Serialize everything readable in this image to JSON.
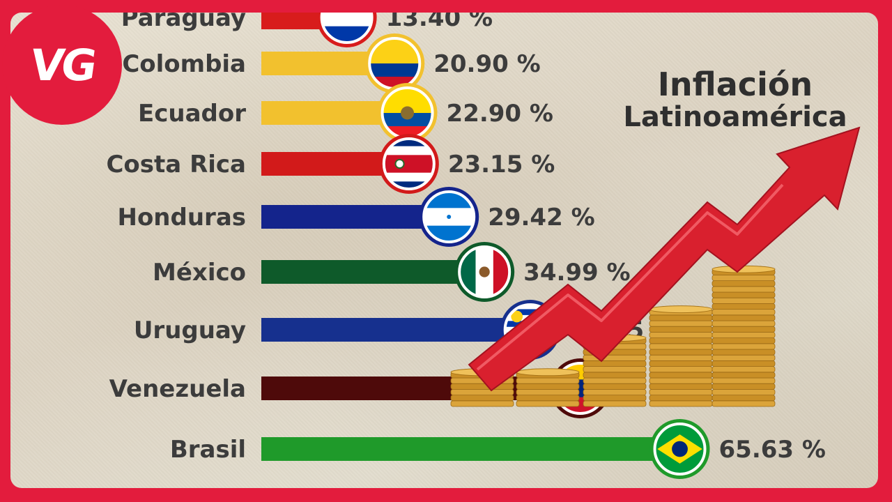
{
  "logo": {
    "text": "VG",
    "color": "#e31c3d"
  },
  "title": {
    "line1": "Inflación",
    "line2": "Latinoamérica"
  },
  "chart_data": {
    "type": "bar",
    "orientation": "horizontal",
    "categories": [
      "Paraguay",
      "Colombia",
      "Ecuador",
      "Costa Rica",
      "Honduras",
      "México",
      "Uruguay",
      "Venezuela",
      "Brasil"
    ],
    "values": [
      13.4,
      20.9,
      22.9,
      23.15,
      29.42,
      34.99,
      42.15,
      50.0,
      65.63
    ],
    "value_labels": [
      "13.40 %",
      "20.90 %",
      "22.90 %",
      "23.15 %",
      "29.42 %",
      "34.99 %",
      "42.15 %",
      "%",
      "65.63 %"
    ],
    "bar_colors": [
      "#d81c1c",
      "#f2c12e",
      "#f2c12e",
      "#d21a1a",
      "#14248c",
      "#0e5a2a",
      "#16308e",
      "#4e0a0a",
      "#1f9a2a"
    ],
    "flags": [
      "paraguay-flag",
      "colombia-flag",
      "ecuador-flag",
      "costa-rica-flag",
      "honduras-flag",
      "mexico-flag",
      "uruguay-flag",
      "venezuela-flag",
      "brazil-flag"
    ],
    "value_unit": "%",
    "legend": "none"
  },
  "decorations": {
    "arrow_icon": "rising-arrow-icon",
    "coins_icon": "coin-stacks-icon",
    "arrow_color": "#d9202e",
    "coin_color": "#d8a233"
  }
}
